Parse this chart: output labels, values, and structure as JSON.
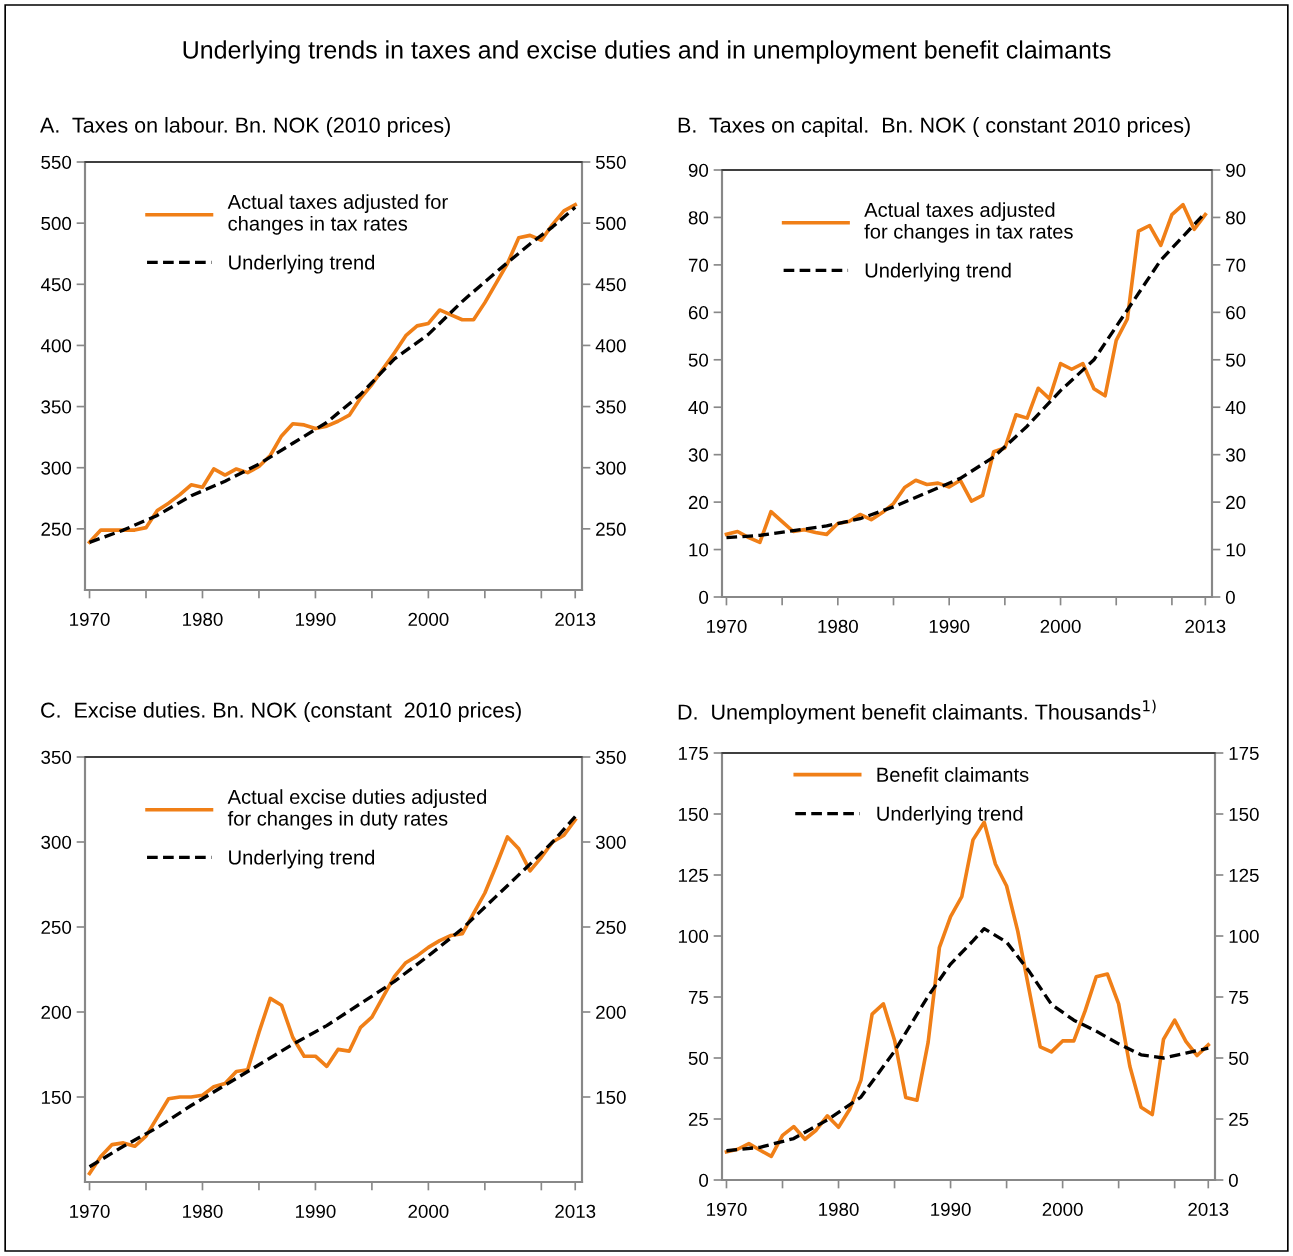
{
  "chart_data": [
    {
      "type": "line",
      "title": "A.  Taxes on labour. Bn. NOK (2010 prices)",
      "annotations": [
        "Underlying trends in taxes and excise duties and in unemployment benefit claimants"
      ],
      "x": [
        1970,
        1971,
        1972,
        1973,
        1974,
        1975,
        1976,
        1977,
        1978,
        1979,
        1980,
        1981,
        1982,
        1983,
        1984,
        1985,
        1986,
        1987,
        1988,
        1989,
        1990,
        1991,
        1992,
        1993,
        1994,
        1995,
        1996,
        1997,
        1998,
        1999,
        2000,
        2001,
        2002,
        2003,
        2004,
        2005,
        2006,
        2007,
        2008,
        2009,
        2010,
        2011,
        2012,
        2013
      ],
      "series": [
        {
          "name": "Actual taxes adjusted for\nchanges in tax rates",
          "color": "#f07f17",
          "line_style": "solid",
          "values": [
            239,
            249,
            249,
            249,
            249,
            251,
            265,
            271,
            278,
            286,
            284,
            299,
            294,
            299,
            296,
            301,
            310,
            326,
            336,
            335,
            332,
            334,
            338,
            343,
            357,
            368,
            381,
            394,
            408,
            416,
            418,
            429,
            425,
            421,
            421,
            435,
            451,
            467,
            488,
            490,
            486,
            499,
            510,
            515
          ]
        },
        {
          "name": "Underlying trend",
          "color": "#000000",
          "line_style": "dashed",
          "x": [
            1970,
            1973,
            1976,
            1979,
            1982,
            1985,
            1988,
            1991,
            1994,
            1997,
            2000,
            2003,
            2006,
            2009,
            2011,
            2013
          ],
          "values": [
            239,
            249,
            261,
            277,
            289,
            303,
            320,
            337,
            360,
            389,
            409,
            436,
            460,
            483,
            497,
            513
          ]
        }
      ],
      "xlim": [
        1969.6,
        2013.6
      ],
      "xticks": [
        1970,
        {
          "value": 1975,
          "label": null
        },
        1980,
        {
          "value": 1985,
          "label": null
        },
        1990,
        {
          "value": 1995,
          "label": null
        },
        2000,
        {
          "value": 2005,
          "label": null
        },
        {
          "value": 2010,
          "label": null
        },
        2013
      ],
      "ylim": [
        200,
        550
      ],
      "yticks": [
        250,
        300,
        350,
        400,
        450,
        500,
        550
      ],
      "y2lim": [
        200,
        550
      ],
      "y2ticks": [
        250,
        300,
        350,
        400,
        450,
        500,
        550
      ],
      "legend": "top left",
      "grid": false,
      "marker": "none"
    },
    {
      "type": "line",
      "title": "B.  Taxes on capital.  Bn. NOK ( constant 2010 prices)",
      "x": [
        1970,
        1971,
        1972,
        1973,
        1974,
        1975,
        1976,
        1977,
        1978,
        1979,
        1980,
        1981,
        1982,
        1983,
        1984,
        1985,
        1986,
        1987,
        1988,
        1989,
        1990,
        1991,
        1992,
        1993,
        1994,
        1995,
        1996,
        1997,
        1998,
        1999,
        2000,
        2001,
        2002,
        2003,
        2004,
        2005,
        2006,
        2007,
        2008,
        2009,
        2010,
        2011,
        2012,
        2013
      ],
      "series": [
        {
          "name": "Actual taxes adjusted\nfor changes in tax rates",
          "color": "#f07f17",
          "line_style": "solid",
          "values": [
            13.2,
            13.8,
            12.5,
            11.5,
            18.0,
            15.9,
            13.8,
            14.2,
            13.6,
            13.2,
            15.5,
            15.9,
            17.4,
            16.3,
            17.8,
            19.7,
            23.1,
            24.6,
            23.7,
            24.0,
            23.2,
            24.6,
            20.2,
            21.4,
            30.6,
            31.4,
            38.4,
            37.7,
            44.0,
            41.8,
            49.2,
            48.0,
            49.2,
            43.9,
            42.4,
            54.1,
            58.6,
            77.1,
            78.3,
            74.1,
            80.6,
            82.7,
            77.5,
            80.6
          ]
        },
        {
          "name": "Underlying trend",
          "color": "#000000",
          "line_style": "dashed",
          "x": [
            1970,
            1973,
            1976,
            1979,
            1982,
            1985,
            1988,
            1991,
            1994,
            1997,
            2000,
            2003,
            2006,
            2009,
            2011,
            2013
          ],
          "values": [
            12.5,
            13,
            14,
            15,
            16.5,
            19,
            22,
            25,
            29.5,
            36,
            43.5,
            50,
            60.5,
            71,
            76,
            81
          ]
        }
      ],
      "xlim": [
        1969.6,
        2013.6
      ],
      "xticks": [
        1970,
        {
          "value": 1975,
          "label": null
        },
        1980,
        {
          "value": 1985,
          "label": null
        },
        1990,
        {
          "value": 1995,
          "label": null
        },
        2000,
        {
          "value": 2005,
          "label": null
        },
        {
          "value": 2010,
          "label": null
        },
        2013
      ],
      "ylim": [
        0,
        90
      ],
      "yticks": [
        0,
        10,
        20,
        30,
        40,
        50,
        60,
        70,
        80,
        90
      ],
      "y2lim": [
        0,
        90
      ],
      "y2ticks": [
        0,
        10,
        20,
        30,
        40,
        50,
        60,
        70,
        80,
        90
      ],
      "legend": "top left",
      "grid": false,
      "marker": "none"
    },
    {
      "type": "line",
      "title": "C.  Excise duties. Bn. NOK (constant  2010 prices)",
      "x": [
        1970,
        1971,
        1972,
        1973,
        1974,
        1975,
        1976,
        1977,
        1978,
        1979,
        1980,
        1981,
        1982,
        1983,
        1984,
        1985,
        1986,
        1987,
        1988,
        1989,
        1990,
        1991,
        1992,
        1993,
        1994,
        1995,
        1996,
        1997,
        1998,
        1999,
        2000,
        2001,
        2002,
        2003,
        2004,
        2005,
        2006,
        2007,
        2008,
        2009,
        2010,
        2011,
        2012,
        2013
      ],
      "series": [
        {
          "name": "Actual excise duties adjusted\nfor changes in duty rates",
          "color": "#f07f17",
          "line_style": "solid",
          "values": [
            105,
            115,
            122,
            123,
            121,
            127,
            138,
            149,
            150,
            150,
            151,
            156,
            158,
            165,
            166,
            188,
            208,
            204,
            185,
            174,
            174,
            168,
            178,
            177,
            191,
            197,
            209,
            221,
            229,
            233,
            238,
            242,
            245,
            246,
            258,
            270,
            286,
            303,
            296,
            283,
            291,
            300,
            304,
            313
          ]
        },
        {
          "name": "Underlying trend",
          "color": "#000000",
          "line_style": "dashed",
          "x": [
            1970,
            1973,
            1976,
            1979,
            1982,
            1985,
            1988,
            1991,
            1994,
            1997,
            2000,
            2003,
            2006,
            2009,
            2011,
            2013
          ],
          "values": [
            109,
            121,
            132,
            145,
            157,
            169,
            181,
            192,
            205,
            218,
            233,
            249,
            268,
            287,
            300,
            315
          ]
        }
      ],
      "xlim": [
        1969.6,
        2013.6
      ],
      "xticks": [
        1970,
        {
          "value": 1975,
          "label": null
        },
        1980,
        {
          "value": 1985,
          "label": null
        },
        1990,
        {
          "value": 1995,
          "label": null
        },
        2000,
        {
          "value": 2005,
          "label": null
        },
        {
          "value": 2010,
          "label": null
        },
        2013
      ],
      "ylim": [
        100,
        350
      ],
      "yticks": [
        150,
        200,
        250,
        300,
        350
      ],
      "y2lim": [
        100,
        350
      ],
      "y2ticks": [
        150,
        200,
        250,
        300,
        350
      ],
      "legend": "top left",
      "grid": false,
      "marker": "none"
    },
    {
      "type": "line",
      "title": "D.  Unemployment benefit claimants. Thousands$^{1)}$",
      "x": [
        1970,
        1971,
        1972,
        1973,
        1974,
        1975,
        1976,
        1977,
        1978,
        1979,
        1980,
        1981,
        1982,
        1983,
        1984,
        1985,
        1986,
        1987,
        1988,
        1989,
        1990,
        1991,
        1992,
        1993,
        1994,
        1995,
        1996,
        1997,
        1998,
        1999,
        2000,
        2001,
        2002,
        2003,
        2004,
        2005,
        2006,
        2007,
        2008,
        2009,
        2010,
        2011,
        2012,
        2013
      ],
      "series": [
        {
          "name": "Benefit claimants",
          "color": "#f07f17",
          "line_style": "solid",
          "values": [
            11.5,
            12.6,
            14.9,
            12.2,
            9.7,
            18.3,
            21.9,
            16.7,
            20.4,
            26.3,
            21.6,
            29.0,
            40.9,
            68.0,
            72.2,
            57.3,
            33.8,
            32.7,
            56.5,
            95.2,
            107.9,
            116.1,
            139.4,
            146.6,
            129.5,
            120.5,
            101.9,
            78.1,
            54.6,
            52.5,
            57.0,
            57.0,
            69.2,
            83.3,
            84.4,
            72.2,
            46.6,
            29.8,
            26.8,
            57.6,
            65.5,
            56.8,
            51.0,
            55.4
          ]
        },
        {
          "name": "Underlying trend",
          "color": "#000000",
          "line_style": "dashed",
          "x": [
            1970,
            1973,
            1976,
            1979,
            1982,
            1985,
            1988,
            1990,
            1992,
            1993,
            1995,
            1997,
            1999,
            2001,
            2003,
            2005,
            2007,
            2009,
            2011,
            2013
          ],
          "values": [
            12,
            13.4,
            17,
            24.6,
            34,
            52.8,
            75.4,
            88.5,
            98,
            103,
            97.5,
            85.6,
            72,
            65.5,
            61,
            55.8,
            51.3,
            50,
            52,
            54
          ]
        }
      ],
      "xlim": [
        1969.6,
        2013.6
      ],
      "xticks": [
        1970,
        {
          "value": 1975,
          "label": null
        },
        1980,
        {
          "value": 1985,
          "label": null
        },
        1990,
        {
          "value": 1995,
          "label": null
        },
        2000,
        {
          "value": 2005,
          "label": null
        },
        {
          "value": 2010,
          "label": null
        },
        2013
      ],
      "ylim": [
        0,
        175
      ],
      "yticks": [
        0,
        25,
        50,
        75,
        100,
        125,
        150,
        175
      ],
      "y2lim": [
        0,
        175
      ],
      "y2ticks": [
        0,
        25,
        50,
        75,
        100,
        125,
        150,
        175
      ],
      "legend": "top left",
      "grid": false,
      "marker": "none"
    }
  ]
}
